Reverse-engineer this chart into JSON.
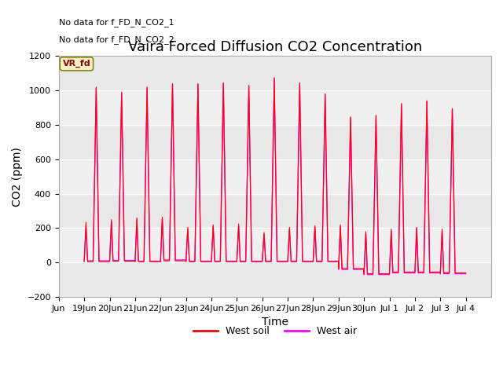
{
  "title": "Vaira Forced Diffusion CO2 Concentration",
  "xlabel": "Time",
  "ylabel": "CO2 (ppm)",
  "ylim": [
    -200,
    1200
  ],
  "yticks": [
    -200,
    0,
    200,
    400,
    600,
    800,
    1000,
    1200
  ],
  "fig_bg_color": "#ffffff",
  "plot_bg_color": "#f0f0f0",
  "legend_entries": [
    "West soil",
    "West air"
  ],
  "soil_color": "#ff0000",
  "air_color": "#ff00ff",
  "no_data_text1": "No data for f_FD_N_CO2_1",
  "no_data_text2": "No data for f_FD_N_CO2_2",
  "vr_fd_label": "VR_fd",
  "title_fontsize": 13,
  "label_fontsize": 10,
  "tick_fontsize": 8,
  "grid_colors": [
    "#e8e8e8",
    "#d8d8d8"
  ],
  "soil_peaks": [
    1030,
    1000,
    1030,
    1050,
    1050,
    1055,
    1040,
    1085,
    1055,
    990,
    855,
    865,
    935,
    950,
    905
  ],
  "air_peaks": [
    1025,
    995,
    1025,
    1045,
    1045,
    1050,
    1035,
    1080,
    1050,
    985,
    850,
    860,
    930,
    945,
    900
  ],
  "morning_peaks_soil": [
    235,
    250,
    260,
    265,
    205,
    220,
    225,
    175,
    205,
    215,
    220,
    180,
    195,
    205,
    195
  ],
  "morning_peaks_air": [
    210,
    240,
    250,
    255,
    195,
    210,
    215,
    165,
    195,
    205,
    210,
    170,
    185,
    200,
    185
  ],
  "min_vals_soil": [
    5,
    8,
    5,
    10,
    5,
    5,
    5,
    5,
    5,
    5,
    -35,
    -65,
    -55,
    -55,
    -60
  ],
  "min_vals_air": [
    10,
    12,
    8,
    15,
    8,
    8,
    8,
    8,
    8,
    8,
    -40,
    -70,
    -60,
    -60,
    -65
  ]
}
